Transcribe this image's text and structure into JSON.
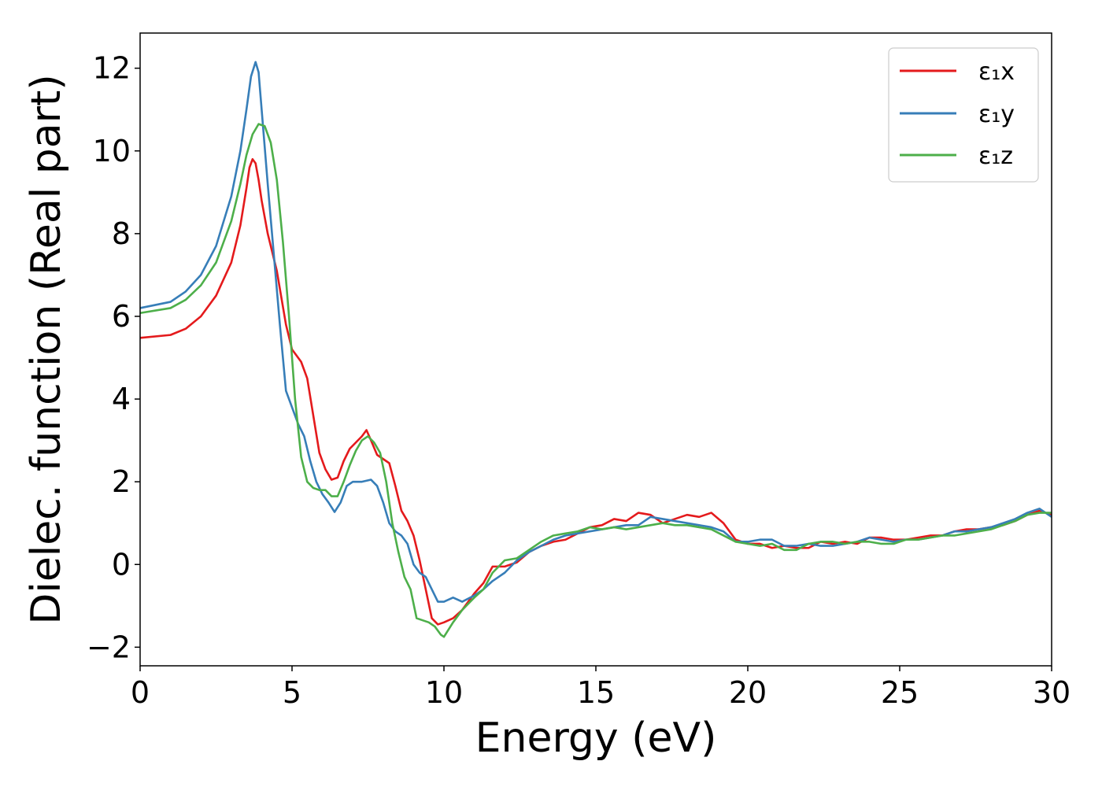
{
  "chart_data": {
    "type": "line",
    "title": "",
    "xlabel": "Energy (eV)",
    "ylabel": "Dielec. function (Real part)",
    "xlim": [
      0,
      30
    ],
    "ylim": [
      -2.45,
      12.85
    ],
    "xticks": [
      0,
      5,
      10,
      15,
      20,
      25,
      30
    ],
    "yticks": [
      -2,
      0,
      2,
      4,
      6,
      8,
      10,
      12
    ],
    "grid": false,
    "legend_position": "top-right",
    "series": [
      {
        "name": "ε₁x",
        "color": "#e41a1c",
        "points": [
          [
            0,
            5.48
          ],
          [
            1.0,
            5.55
          ],
          [
            1.5,
            5.7
          ],
          [
            2.0,
            6.0
          ],
          [
            2.5,
            6.5
          ],
          [
            3.0,
            7.3
          ],
          [
            3.3,
            8.2
          ],
          [
            3.5,
            9.1
          ],
          [
            3.6,
            9.6
          ],
          [
            3.7,
            9.8
          ],
          [
            3.8,
            9.7
          ],
          [
            3.9,
            9.3
          ],
          [
            4.0,
            8.8
          ],
          [
            4.2,
            8.0
          ],
          [
            4.5,
            7.1
          ],
          [
            4.8,
            5.8
          ],
          [
            5.0,
            5.2
          ],
          [
            5.3,
            4.9
          ],
          [
            5.5,
            4.5
          ],
          [
            5.7,
            3.6
          ],
          [
            5.9,
            2.7
          ],
          [
            6.1,
            2.3
          ],
          [
            6.3,
            2.05
          ],
          [
            6.5,
            2.1
          ],
          [
            6.7,
            2.5
          ],
          [
            6.9,
            2.8
          ],
          [
            7.1,
            2.95
          ],
          [
            7.3,
            3.1
          ],
          [
            7.45,
            3.25
          ],
          [
            7.6,
            3.0
          ],
          [
            7.8,
            2.65
          ],
          [
            8.0,
            2.55
          ],
          [
            8.2,
            2.45
          ],
          [
            8.4,
            1.9
          ],
          [
            8.6,
            1.3
          ],
          [
            8.8,
            1.05
          ],
          [
            9.0,
            0.7
          ],
          [
            9.2,
            0.1
          ],
          [
            9.4,
            -0.6
          ],
          [
            9.6,
            -1.3
          ],
          [
            9.8,
            -1.45
          ],
          [
            10.0,
            -1.4
          ],
          [
            10.3,
            -1.3
          ],
          [
            10.6,
            -1.1
          ],
          [
            11.0,
            -0.7
          ],
          [
            11.3,
            -0.45
          ],
          [
            11.6,
            -0.05
          ],
          [
            12.0,
            -0.05
          ],
          [
            12.4,
            0.05
          ],
          [
            12.8,
            0.3
          ],
          [
            13.2,
            0.45
          ],
          [
            13.6,
            0.55
          ],
          [
            14.0,
            0.6
          ],
          [
            14.4,
            0.75
          ],
          [
            14.8,
            0.9
          ],
          [
            15.2,
            0.95
          ],
          [
            15.6,
            1.1
          ],
          [
            16.0,
            1.05
          ],
          [
            16.4,
            1.25
          ],
          [
            16.8,
            1.2
          ],
          [
            17.2,
            1.0
          ],
          [
            17.6,
            1.1
          ],
          [
            18.0,
            1.2
          ],
          [
            18.4,
            1.15
          ],
          [
            18.8,
            1.25
          ],
          [
            19.2,
            1.0
          ],
          [
            19.6,
            0.6
          ],
          [
            20.0,
            0.5
          ],
          [
            20.4,
            0.5
          ],
          [
            20.8,
            0.4
          ],
          [
            21.2,
            0.45
          ],
          [
            21.6,
            0.4
          ],
          [
            22.0,
            0.4
          ],
          [
            22.4,
            0.55
          ],
          [
            22.8,
            0.5
          ],
          [
            23.2,
            0.55
          ],
          [
            23.6,
            0.5
          ],
          [
            24.0,
            0.65
          ],
          [
            24.4,
            0.65
          ],
          [
            24.8,
            0.6
          ],
          [
            25.2,
            0.6
          ],
          [
            25.6,
            0.65
          ],
          [
            26.0,
            0.7
          ],
          [
            26.4,
            0.7
          ],
          [
            26.8,
            0.8
          ],
          [
            27.2,
            0.85
          ],
          [
            27.6,
            0.85
          ],
          [
            28.0,
            0.9
          ],
          [
            28.4,
            0.95
          ],
          [
            28.8,
            1.05
          ],
          [
            29.2,
            1.2
          ],
          [
            29.6,
            1.3
          ],
          [
            30.0,
            1.2
          ]
        ]
      },
      {
        "name": "ε₁y",
        "color": "#377eb8",
        "points": [
          [
            0,
            6.2
          ],
          [
            1.0,
            6.35
          ],
          [
            1.5,
            6.6
          ],
          [
            2.0,
            7.0
          ],
          [
            2.5,
            7.7
          ],
          [
            3.0,
            8.9
          ],
          [
            3.3,
            10.0
          ],
          [
            3.5,
            11.0
          ],
          [
            3.65,
            11.8
          ],
          [
            3.8,
            12.15
          ],
          [
            3.9,
            11.9
          ],
          [
            4.0,
            11.0
          ],
          [
            4.2,
            9.2
          ],
          [
            4.4,
            7.5
          ],
          [
            4.6,
            5.8
          ],
          [
            4.8,
            4.2
          ],
          [
            5.0,
            3.8
          ],
          [
            5.2,
            3.4
          ],
          [
            5.4,
            3.1
          ],
          [
            5.6,
            2.5
          ],
          [
            5.8,
            2.0
          ],
          [
            6.0,
            1.7
          ],
          [
            6.2,
            1.5
          ],
          [
            6.4,
            1.27
          ],
          [
            6.6,
            1.5
          ],
          [
            6.8,
            1.9
          ],
          [
            7.0,
            2.0
          ],
          [
            7.3,
            2.0
          ],
          [
            7.6,
            2.05
          ],
          [
            7.8,
            1.9
          ],
          [
            8.0,
            1.5
          ],
          [
            8.2,
            1.0
          ],
          [
            8.4,
            0.8
          ],
          [
            8.6,
            0.7
          ],
          [
            8.8,
            0.5
          ],
          [
            9.0,
            0.0
          ],
          [
            9.2,
            -0.2
          ],
          [
            9.4,
            -0.3
          ],
          [
            9.6,
            -0.6
          ],
          [
            9.8,
            -0.9
          ],
          [
            10.0,
            -0.9
          ],
          [
            10.3,
            -0.8
          ],
          [
            10.6,
            -0.9
          ],
          [
            11.0,
            -0.75
          ],
          [
            11.3,
            -0.6
          ],
          [
            11.6,
            -0.4
          ],
          [
            12.0,
            -0.2
          ],
          [
            12.4,
            0.1
          ],
          [
            12.8,
            0.3
          ],
          [
            13.2,
            0.45
          ],
          [
            13.6,
            0.6
          ],
          [
            14.0,
            0.7
          ],
          [
            14.4,
            0.75
          ],
          [
            14.8,
            0.8
          ],
          [
            15.2,
            0.85
          ],
          [
            15.6,
            0.9
          ],
          [
            16.0,
            0.95
          ],
          [
            16.4,
            0.95
          ],
          [
            16.8,
            1.15
          ],
          [
            17.2,
            1.1
          ],
          [
            17.6,
            1.05
          ],
          [
            18.0,
            1.0
          ],
          [
            18.4,
            0.95
          ],
          [
            18.8,
            0.9
          ],
          [
            19.2,
            0.8
          ],
          [
            19.6,
            0.55
          ],
          [
            20.0,
            0.55
          ],
          [
            20.4,
            0.6
          ],
          [
            20.8,
            0.6
          ],
          [
            21.2,
            0.45
          ],
          [
            21.6,
            0.45
          ],
          [
            22.0,
            0.5
          ],
          [
            22.4,
            0.45
          ],
          [
            22.8,
            0.45
          ],
          [
            23.2,
            0.5
          ],
          [
            23.6,
            0.55
          ],
          [
            24.0,
            0.65
          ],
          [
            24.4,
            0.6
          ],
          [
            24.8,
            0.55
          ],
          [
            25.2,
            0.6
          ],
          [
            25.6,
            0.6
          ],
          [
            26.0,
            0.65
          ],
          [
            26.4,
            0.7
          ],
          [
            26.8,
            0.8
          ],
          [
            27.2,
            0.8
          ],
          [
            27.6,
            0.85
          ],
          [
            28.0,
            0.9
          ],
          [
            28.4,
            1.0
          ],
          [
            28.8,
            1.1
          ],
          [
            29.2,
            1.25
          ],
          [
            29.6,
            1.35
          ],
          [
            30.0,
            1.15
          ]
        ]
      },
      {
        "name": "ε₁z",
        "color": "#4daf4a",
        "points": [
          [
            0,
            6.08
          ],
          [
            1.0,
            6.2
          ],
          [
            1.5,
            6.4
          ],
          [
            2.0,
            6.75
          ],
          [
            2.5,
            7.3
          ],
          [
            3.0,
            8.3
          ],
          [
            3.3,
            9.2
          ],
          [
            3.5,
            9.9
          ],
          [
            3.7,
            10.4
          ],
          [
            3.9,
            10.65
          ],
          [
            4.1,
            10.6
          ],
          [
            4.3,
            10.2
          ],
          [
            4.5,
            9.3
          ],
          [
            4.7,
            7.8
          ],
          [
            4.9,
            6.0
          ],
          [
            5.1,
            4.0
          ],
          [
            5.3,
            2.6
          ],
          [
            5.5,
            2.0
          ],
          [
            5.7,
            1.85
          ],
          [
            5.9,
            1.8
          ],
          [
            6.1,
            1.8
          ],
          [
            6.3,
            1.65
          ],
          [
            6.5,
            1.65
          ],
          [
            6.7,
            2.0
          ],
          [
            6.9,
            2.4
          ],
          [
            7.1,
            2.75
          ],
          [
            7.3,
            3.0
          ],
          [
            7.5,
            3.1
          ],
          [
            7.7,
            2.95
          ],
          [
            7.9,
            2.7
          ],
          [
            8.1,
            2.0
          ],
          [
            8.3,
            1.0
          ],
          [
            8.5,
            0.3
          ],
          [
            8.7,
            -0.3
          ],
          [
            8.9,
            -0.6
          ],
          [
            9.1,
            -1.3
          ],
          [
            9.3,
            -1.35
          ],
          [
            9.5,
            -1.4
          ],
          [
            9.7,
            -1.5
          ],
          [
            9.9,
            -1.7
          ],
          [
            10.0,
            -1.75
          ],
          [
            10.3,
            -1.4
          ],
          [
            10.6,
            -1.1
          ],
          [
            11.0,
            -0.8
          ],
          [
            11.3,
            -0.6
          ],
          [
            11.6,
            -0.2
          ],
          [
            12.0,
            0.1
          ],
          [
            12.4,
            0.15
          ],
          [
            12.8,
            0.35
          ],
          [
            13.2,
            0.55
          ],
          [
            13.6,
            0.7
          ],
          [
            14.0,
            0.75
          ],
          [
            14.4,
            0.8
          ],
          [
            14.8,
            0.9
          ],
          [
            15.2,
            0.85
          ],
          [
            15.6,
            0.9
          ],
          [
            16.0,
            0.85
          ],
          [
            16.4,
            0.9
          ],
          [
            16.8,
            0.95
          ],
          [
            17.2,
            1.0
          ],
          [
            17.6,
            0.95
          ],
          [
            18.0,
            0.95
          ],
          [
            18.4,
            0.9
          ],
          [
            18.8,
            0.85
          ],
          [
            19.2,
            0.7
          ],
          [
            19.6,
            0.55
          ],
          [
            20.0,
            0.5
          ],
          [
            20.4,
            0.45
          ],
          [
            20.8,
            0.5
          ],
          [
            21.2,
            0.35
          ],
          [
            21.6,
            0.35
          ],
          [
            22.0,
            0.5
          ],
          [
            22.4,
            0.55
          ],
          [
            22.8,
            0.55
          ],
          [
            23.2,
            0.5
          ],
          [
            23.6,
            0.55
          ],
          [
            24.0,
            0.55
          ],
          [
            24.4,
            0.5
          ],
          [
            24.8,
            0.5
          ],
          [
            25.2,
            0.6
          ],
          [
            25.6,
            0.6
          ],
          [
            26.0,
            0.65
          ],
          [
            26.4,
            0.7
          ],
          [
            26.8,
            0.7
          ],
          [
            27.2,
            0.75
          ],
          [
            27.6,
            0.8
          ],
          [
            28.0,
            0.85
          ],
          [
            28.4,
            0.95
          ],
          [
            28.8,
            1.05
          ],
          [
            29.2,
            1.2
          ],
          [
            29.6,
            1.25
          ],
          [
            30.0,
            1.25
          ]
        ]
      }
    ]
  }
}
